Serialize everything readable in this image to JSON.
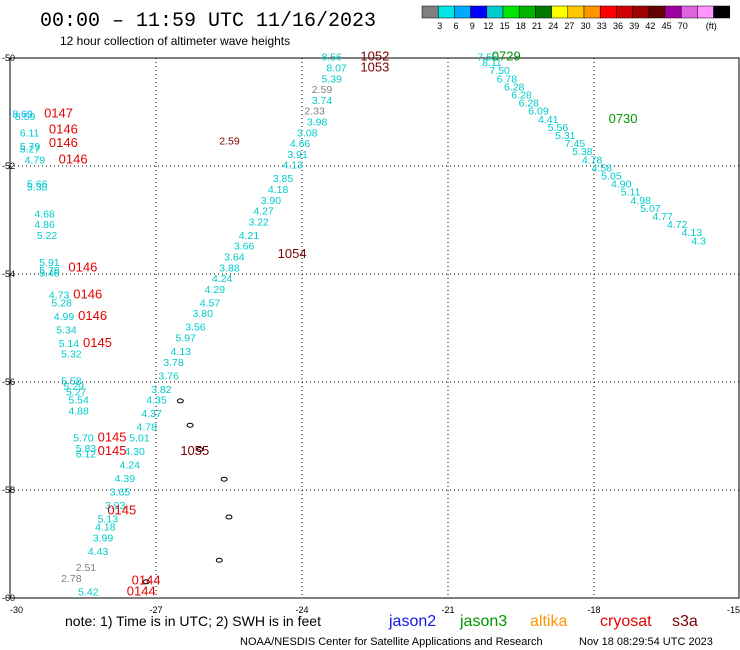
{
  "header": {
    "title": "00:00 – 11:59 UTC 11/16/2023",
    "subtitle": "12 hour collection of altimeter wave heights"
  },
  "footer": {
    "note": "note:  1) Time is in UTC;  2) SWH is in feet",
    "credit": "NOAA/NESDIS Center for Satellite Applications and Research",
    "timestamp": "Nov 18 08:29:54 UTC 2023"
  },
  "satellites": [
    {
      "name": "jason2",
      "color": "#1414e6"
    },
    {
      "name": "jason3",
      "color": "#009600"
    },
    {
      "name": "altika",
      "color": "#ff9600"
    },
    {
      "name": "cryosat",
      "color": "#e60000"
    },
    {
      "name": "s3a",
      "color": "#780000"
    }
  ],
  "chart_data": {
    "type": "scatter",
    "title": "00:00 – 11:59 UTC 11/16/2023",
    "subtitle": "12 hour collection of altimeter wave heights",
    "xlim": [
      -30,
      -15
    ],
    "ylim": [
      -60,
      -50
    ],
    "x_ticks": [
      -30,
      -27,
      -24,
      -21,
      -18,
      -15
    ],
    "y_ticks": [
      -50,
      -52,
      -54,
      -56,
      -58,
      -60
    ],
    "grid": true,
    "units": "(ft)",
    "colorbar": {
      "bins": [
        "3",
        "6",
        "9",
        "12",
        "15",
        "18",
        "21",
        "24",
        "27",
        "30",
        "33",
        "36",
        "39",
        "42",
        "45",
        "70"
      ],
      "colors": [
        "#808080",
        "#00e5e5",
        "#00aaff",
        "#0000ff",
        "#00cccc",
        "#00e600",
        "#00b400",
        "#007800",
        "#ffff00",
        "#ffc800",
        "#ff9600",
        "#ff0000",
        "#d20000",
        "#a00000",
        "#640000",
        "#a000a0",
        "#e064e0",
        "#ff96ff",
        "#000000"
      ],
      "colors_note": "19 swatches shown"
    },
    "series": [
      {
        "name": "s3a",
        "color": "#780000",
        "points": [
          {
            "lon": -25.7,
            "lat": -51.6,
            "v": "2.59"
          }
        ]
      }
    ],
    "time_labels": [
      {
        "lon": -22.8,
        "lat": -50.05,
        "text": "1052",
        "sat": "s3a"
      },
      {
        "lon": -22.8,
        "lat": -50.25,
        "text": "1053",
        "sat": "s3a"
      },
      {
        "lon": -24.5,
        "lat": -53.7,
        "text": "1054",
        "sat": "s3a"
      },
      {
        "lon": -26.5,
        "lat": -57.35,
        "text": "1055",
        "sat": "s3a"
      },
      {
        "lon": -20.1,
        "lat": -50.05,
        "text": "0729",
        "sat": "jason3"
      },
      {
        "lon": -17.7,
        "lat": -51.2,
        "text": "0730",
        "sat": "jason3"
      },
      {
        "lon": -29.3,
        "lat": -51.1,
        "text": "0147",
        "sat": "cryosat"
      },
      {
        "lon": -29.2,
        "lat": -51.4,
        "text": "0146",
        "sat": "cryosat"
      },
      {
        "lon": -29.2,
        "lat": -51.65,
        "text": "0146",
        "sat": "cryosat"
      },
      {
        "lon": -29.0,
        "lat": -51.95,
        "text": "0146",
        "sat": "cryosat"
      },
      {
        "lon": -28.8,
        "lat": -53.95,
        "text": "0146",
        "sat": "cryosat"
      },
      {
        "lon": -28.7,
        "lat": -54.45,
        "text": "0146",
        "sat": "cryosat"
      },
      {
        "lon": -28.6,
        "lat": -54.85,
        "text": "0146",
        "sat": "cryosat"
      },
      {
        "lon": -28.5,
        "lat": -55.35,
        "text": "0145",
        "sat": "cryosat"
      },
      {
        "lon": -28.2,
        "lat": -57.1,
        "text": "0145",
        "sat": "cryosat"
      },
      {
        "lon": -28.2,
        "lat": -57.35,
        "text": "0145",
        "sat": "cryosat"
      },
      {
        "lon": -28.0,
        "lat": -58.45,
        "text": "0145",
        "sat": "cryosat"
      },
      {
        "lon": -27.5,
        "lat": -59.75,
        "text": "0144",
        "sat": "cryosat"
      },
      {
        "lon": -27.6,
        "lat": -59.95,
        "text": "0144",
        "sat": "cryosat"
      }
    ],
    "swh_labels": [
      {
        "lon": -23.6,
        "lat": -50.05,
        "v": "8.56",
        "c": "#00cccc"
      },
      {
        "lon": -23.5,
        "lat": -50.25,
        "v": "8.07",
        "c": "#00cccc"
      },
      {
        "lon": -23.6,
        "lat": -50.45,
        "v": "5.39",
        "c": "#00cccc"
      },
      {
        "lon": -23.8,
        "lat": -50.65,
        "v": "2.59",
        "c": "#808080"
      },
      {
        "lon": -23.8,
        "lat": -50.85,
        "v": "3.74",
        "c": "#00cccc"
      },
      {
        "lon": -23.95,
        "lat": -51.05,
        "v": "2.33",
        "c": "#808080"
      },
      {
        "lon": -23.9,
        "lat": -51.25,
        "v": "3.98",
        "c": "#00cccc"
      },
      {
        "lon": -24.1,
        "lat": -51.45,
        "v": "3.08",
        "c": "#00cccc"
      },
      {
        "lon": -24.25,
        "lat": -51.65,
        "v": "4.66",
        "c": "#00cccc"
      },
      {
        "lon": -24.3,
        "lat": -51.85,
        "v": "3.91",
        "c": "#00cccc"
      },
      {
        "lon": -24.4,
        "lat": -52.05,
        "v": "4.13",
        "c": "#00cccc"
      },
      {
        "lon": -24.6,
        "lat": -52.3,
        "v": "3.85",
        "c": "#00cccc"
      },
      {
        "lon": -24.7,
        "lat": -52.5,
        "v": "4.18",
        "c": "#00cccc"
      },
      {
        "lon": -24.85,
        "lat": -52.7,
        "v": "3.90",
        "c": "#00cccc"
      },
      {
        "lon": -25.0,
        "lat": -52.9,
        "v": "4.27",
        "c": "#00cccc"
      },
      {
        "lon": -25.1,
        "lat": -53.1,
        "v": "3.22",
        "c": "#00cccc"
      },
      {
        "lon": -25.3,
        "lat": -53.35,
        "v": "4.21",
        "c": "#00cccc"
      },
      {
        "lon": -25.4,
        "lat": -53.55,
        "v": "3.66",
        "c": "#00cccc"
      },
      {
        "lon": -25.6,
        "lat": -53.75,
        "v": "3.64",
        "c": "#00cccc"
      },
      {
        "lon": -25.7,
        "lat": -53.95,
        "v": "3.88",
        "c": "#00cccc"
      },
      {
        "lon": -25.85,
        "lat": -54.15,
        "v": "4.24",
        "c": "#00cccc"
      },
      {
        "lon": -26.0,
        "lat": -54.35,
        "v": "4.29",
        "c": "#00cccc"
      },
      {
        "lon": -26.1,
        "lat": -54.6,
        "v": "4.57",
        "c": "#00cccc"
      },
      {
        "lon": -26.25,
        "lat": -54.8,
        "v": "3.80",
        "c": "#00cccc"
      },
      {
        "lon": -26.4,
        "lat": -55.05,
        "v": "3.56",
        "c": "#00cccc"
      },
      {
        "lon": -26.6,
        "lat": -55.25,
        "v": "5.97",
        "c": "#00cccc"
      },
      {
        "lon": -26.7,
        "lat": -55.5,
        "v": "4.13",
        "c": "#00cccc"
      },
      {
        "lon": -26.85,
        "lat": -55.7,
        "v": "3.78",
        "c": "#00cccc"
      },
      {
        "lon": -26.95,
        "lat": -55.95,
        "v": "3.76",
        "c": "#00cccc"
      },
      {
        "lon": -27.1,
        "lat": -56.2,
        "v": "3.82",
        "c": "#00cccc"
      },
      {
        "lon": -27.2,
        "lat": -56.4,
        "v": "4.35",
        "c": "#00cccc"
      },
      {
        "lon": -27.3,
        "lat": -56.65,
        "v": "4.37",
        "c": "#00cccc"
      },
      {
        "lon": -27.4,
        "lat": -56.9,
        "v": "4.78",
        "c": "#00cccc"
      },
      {
        "lon": -27.55,
        "lat": -57.1,
        "v": "5.01",
        "c": "#00cccc"
      },
      {
        "lon": -27.65,
        "lat": -57.35,
        "v": "4.30",
        "c": "#00cccc"
      },
      {
        "lon": -27.75,
        "lat": -57.6,
        "v": "4.24",
        "c": "#00cccc"
      },
      {
        "lon": -27.85,
        "lat": -57.85,
        "v": "4.39",
        "c": "#00cccc"
      },
      {
        "lon": -27.95,
        "lat": -58.1,
        "v": "3.65",
        "c": "#00cccc"
      },
      {
        "lon": -28.05,
        "lat": -58.35,
        "v": "3.93",
        "c": "#00cccc"
      },
      {
        "lon": -28.2,
        "lat": -58.6,
        "v": "5.13",
        "c": "#00cccc"
      },
      {
        "lon": -28.25,
        "lat": -58.75,
        "v": "4.18",
        "c": "#00cccc"
      },
      {
        "lon": -28.3,
        "lat": -58.95,
        "v": "3.99",
        "c": "#00cccc"
      },
      {
        "lon": -28.4,
        "lat": -59.2,
        "v": "4.43",
        "c": "#00cccc"
      },
      {
        "lon": -28.65,
        "lat": -59.5,
        "v": "2.51",
        "c": "#808080"
      },
      {
        "lon": -28.95,
        "lat": -59.7,
        "v": "2.78",
        "c": "#808080"
      },
      {
        "lon": -28.6,
        "lat": -59.95,
        "v": "5.42",
        "c": "#00cccc"
      },
      {
        "lon": -20.4,
        "lat": -50.05,
        "v": "7.55",
        "c": "#00cccc"
      },
      {
        "lon": -20.3,
        "lat": -50.15,
        "v": "8.11",
        "c": "#00cccc"
      },
      {
        "lon": -20.15,
        "lat": -50.3,
        "v": "7.50",
        "c": "#00cccc"
      },
      {
        "lon": -20.0,
        "lat": -50.45,
        "v": "6.78",
        "c": "#00cccc"
      },
      {
        "lon": -19.85,
        "lat": -50.6,
        "v": "6.28",
        "c": "#00cccc"
      },
      {
        "lon": -19.7,
        "lat": -50.75,
        "v": "6.28",
        "c": "#00cccc"
      },
      {
        "lon": -19.55,
        "lat": -50.9,
        "v": "6.28",
        "c": "#00cccc"
      },
      {
        "lon": -19.35,
        "lat": -51.05,
        "v": "6.09",
        "c": "#00cccc"
      },
      {
        "lon": -19.15,
        "lat": -51.2,
        "v": "4.41",
        "c": "#00cccc"
      },
      {
        "lon": -18.95,
        "lat": -51.35,
        "v": "5.56",
        "c": "#00cccc"
      },
      {
        "lon": -18.8,
        "lat": -51.5,
        "v": "5.31",
        "c": "#00cccc"
      },
      {
        "lon": -18.6,
        "lat": -51.65,
        "v": "7.45",
        "c": "#00cccc"
      },
      {
        "lon": -18.45,
        "lat": -51.8,
        "v": "5.38",
        "c": "#00cccc"
      },
      {
        "lon": -18.25,
        "lat": -51.95,
        "v": "4.78",
        "c": "#00cccc"
      },
      {
        "lon": -18.05,
        "lat": -52.1,
        "v": "4.58",
        "c": "#00cccc"
      },
      {
        "lon": -17.85,
        "lat": -52.25,
        "v": "5.05",
        "c": "#00cccc"
      },
      {
        "lon": -17.65,
        "lat": -52.4,
        "v": "4.90",
        "c": "#00cccc"
      },
      {
        "lon": -17.45,
        "lat": -52.55,
        "v": "5.11",
        "c": "#00cccc"
      },
      {
        "lon": -17.25,
        "lat": -52.7,
        "v": "4.98",
        "c": "#00cccc"
      },
      {
        "lon": -17.05,
        "lat": -52.85,
        "v": "5.07",
        "c": "#00cccc"
      },
      {
        "lon": -16.8,
        "lat": -53.0,
        "v": "4.77",
        "c": "#00cccc"
      },
      {
        "lon": -16.5,
        "lat": -53.15,
        "v": "4.72",
        "c": "#00cccc"
      },
      {
        "lon": -16.2,
        "lat": -53.3,
        "v": "4.13",
        "c": "#00cccc"
      },
      {
        "lon": -16.0,
        "lat": -53.45,
        "v": "4.3",
        "c": "#00cccc"
      },
      {
        "lon": -29.95,
        "lat": -51.1,
        "v": "8.69",
        "c": "#00aaff"
      },
      {
        "lon": -29.9,
        "lat": -51.15,
        "v": "8.59",
        "c": "#00cccc"
      },
      {
        "lon": -29.8,
        "lat": -51.45,
        "v": "6.11",
        "c": "#00cccc"
      },
      {
        "lon": -29.8,
        "lat": -51.7,
        "v": "5.79",
        "c": "#00cccc"
      },
      {
        "lon": -29.8,
        "lat": -51.75,
        "v": "5.27",
        "c": "#00cccc"
      },
      {
        "lon": -29.7,
        "lat": -51.95,
        "v": "4.79",
        "c": "#00cccc"
      },
      {
        "lon": -29.65,
        "lat": -52.4,
        "v": "5.66",
        "c": "#00cccc"
      },
      {
        "lon": -29.65,
        "lat": -52.45,
        "v": "5.38",
        "c": "#00cccc"
      },
      {
        "lon": -29.5,
        "lat": -52.95,
        "v": "4.68",
        "c": "#00cccc"
      },
      {
        "lon": -29.5,
        "lat": -53.15,
        "v": "4.86",
        "c": "#00cccc"
      },
      {
        "lon": -29.45,
        "lat": -53.35,
        "v": "5.22",
        "c": "#00cccc"
      },
      {
        "lon": -29.4,
        "lat": -53.85,
        "v": "5.91",
        "c": "#00cccc"
      },
      {
        "lon": -29.4,
        "lat": -54.0,
        "v": "5.78",
        "c": "#00cccc"
      },
      {
        "lon": -29.4,
        "lat": -54.05,
        "v": "5.48",
        "c": "#00cccc"
      },
      {
        "lon": -29.2,
        "lat": -54.45,
        "v": "4.73",
        "c": "#00cccc"
      },
      {
        "lon": -29.15,
        "lat": -54.6,
        "v": "5.28",
        "c": "#00cccc"
      },
      {
        "lon": -29.1,
        "lat": -54.85,
        "v": "4.99",
        "c": "#00cccc"
      },
      {
        "lon": -29.05,
        "lat": -55.1,
        "v": "5.34",
        "c": "#00cccc"
      },
      {
        "lon": -29.0,
        "lat": -55.35,
        "v": "5.14",
        "c": "#00cccc"
      },
      {
        "lon": -28.95,
        "lat": -55.55,
        "v": "5.32",
        "c": "#00cccc"
      },
      {
        "lon": -28.95,
        "lat": -56.05,
        "v": "5.58",
        "c": "#00cccc"
      },
      {
        "lon": -28.9,
        "lat": -56.15,
        "v": "5.29",
        "c": "#00cccc"
      },
      {
        "lon": -28.85,
        "lat": -56.25,
        "v": "5.27",
        "c": "#00cccc"
      },
      {
        "lon": -28.8,
        "lat": -56.4,
        "v": "5.54",
        "c": "#00cccc"
      },
      {
        "lon": -28.8,
        "lat": -56.6,
        "v": "4.88",
        "c": "#00cccc"
      },
      {
        "lon": -28.7,
        "lat": -57.1,
        "v": "5.70",
        "c": "#00cccc"
      },
      {
        "lon": -28.65,
        "lat": -57.3,
        "v": "5.83",
        "c": "#00cccc"
      },
      {
        "lon": -28.65,
        "lat": -57.4,
        "v": "6.12",
        "c": "#00cccc"
      }
    ],
    "islands": [
      {
        "lon": -26.5,
        "lat": -56.35
      },
      {
        "lon": -26.3,
        "lat": -56.8
      },
      {
        "lon": -26.1,
        "lat": -57.25
      },
      {
        "lon": -25.6,
        "lat": -57.8
      },
      {
        "lon": -25.5,
        "lat": -58.5
      },
      {
        "lon": -25.7,
        "lat": -59.3
      },
      {
        "lon": -27.2,
        "lat": -59.7
      }
    ]
  }
}
